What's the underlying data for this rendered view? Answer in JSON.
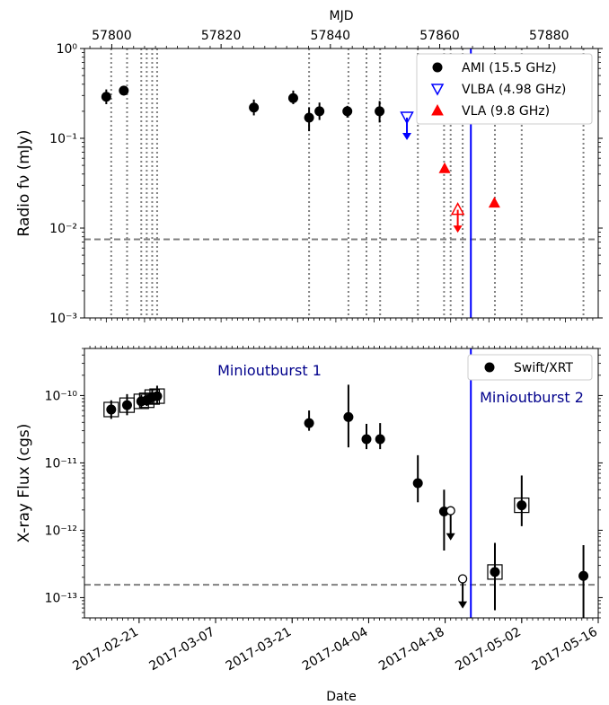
{
  "top_axis_label": "MJD",
  "bottom_axis_label": "Date",
  "chart_data": [
    {
      "type": "scatter",
      "panel": "radio",
      "ylabel": "Radio fν (mJy)",
      "yscale": "log",
      "ylim": [
        0.001,
        1
      ],
      "xlim_mjd": [
        57795,
        57889
      ],
      "y_ticks": [
        {
          "v": 0.001,
          "label": "10⁻³"
        },
        {
          "v": 0.01,
          "label": "10⁻²"
        },
        {
          "v": 0.1,
          "label": "10⁻¹"
        },
        {
          "v": 1,
          "label": "10⁰"
        }
      ],
      "top_ticks": [
        {
          "mjd": 57800,
          "label": "57800"
        },
        {
          "mjd": 57820,
          "label": "57820"
        },
        {
          "mjd": 57840,
          "label": "57840"
        },
        {
          "mjd": 57860,
          "label": "57860"
        },
        {
          "mjd": 57880,
          "label": "57880"
        }
      ],
      "series": [
        {
          "name": "AMI (15.5 GHz)",
          "color": "#000000",
          "marker": "circle",
          "points": [
            {
              "x": 57799.0,
              "y": 0.29,
              "ylo": 0.24,
              "yhi": 0.35
            },
            {
              "x": 57802.2,
              "y": 0.34,
              "ylo": 0.3,
              "yhi": 0.38
            },
            {
              "x": 57826.0,
              "y": 0.22,
              "ylo": 0.18,
              "yhi": 0.27
            },
            {
              "x": 57833.2,
              "y": 0.28,
              "ylo": 0.24,
              "yhi": 0.34
            },
            {
              "x": 57836.1,
              "y": 0.17,
              "ylo": 0.12,
              "yhi": 0.22
            },
            {
              "x": 57838.0,
              "y": 0.2,
              "ylo": 0.16,
              "yhi": 0.25
            },
            {
              "x": 57843.1,
              "y": 0.2,
              "ylo": 0.17,
              "yhi": 0.23
            },
            {
              "x": 57849.0,
              "y": 0.2,
              "ylo": 0.15,
              "yhi": 0.26
            }
          ]
        },
        {
          "name": "VLBA (4.98 GHz)",
          "color": "#0000ff",
          "marker": "triangle-down-open",
          "points": [
            {
              "x": 57854.0,
              "y": 0.17,
              "upper_limit": true,
              "arrow_to": 0.1
            }
          ]
        },
        {
          "name": "VLA (9.8 GHz)",
          "color": "#ff0000",
          "marker": "triangle-up",
          "points": [
            {
              "x": 57860.9,
              "y": 0.046
            },
            {
              "x": 57863.3,
              "y": 0.016,
              "open": true,
              "upper_limit": true,
              "arrow_to": 0.0093
            },
            {
              "x": 57870.0,
              "y": 0.019
            }
          ]
        }
      ],
      "hlines": [
        {
          "y": 0.0075,
          "style": "dashed",
          "color": "#808080"
        }
      ],
      "vlines_dotted_mjd": [
        57799.9,
        57802.8,
        57805.4,
        57806.4,
        57807.4,
        57808.3,
        57836.1,
        57843.3,
        57846.6,
        57849.1,
        57856.0,
        57860.8,
        57862.0,
        57864.2,
        57870.1,
        57875.0,
        57886.3
      ],
      "vline_solid_mjd": 57865.7,
      "legend_position": "upper right"
    },
    {
      "type": "scatter",
      "panel": "xray",
      "ylabel": "X-ray Flux (cgs)",
      "yscale": "log",
      "ylim": [
        5e-14,
        5e-10
      ],
      "y_ticks": [
        {
          "v": 1e-13,
          "label": "10⁻¹³"
        },
        {
          "v": 1e-12,
          "label": "10⁻¹²"
        },
        {
          "v": 1e-11,
          "label": "10⁻¹¹"
        },
        {
          "v": 1e-10,
          "label": "10⁻¹⁰"
        }
      ],
      "x_ticks": [
        {
          "date": "2017-02-21",
          "label": "2017-02-21"
        },
        {
          "date": "2017-03-07",
          "label": "2017-03-07"
        },
        {
          "date": "2017-03-21",
          "label": "2017-03-21"
        },
        {
          "date": "2017-04-04",
          "label": "2017-04-04"
        },
        {
          "date": "2017-04-18",
          "label": "2017-04-18"
        },
        {
          "date": "2017-05-02",
          "label": "2017-05-02"
        },
        {
          "date": "2017-05-16",
          "label": "2017-05-16"
        }
      ],
      "series": [
        {
          "name": "Swift/XRT",
          "color": "#000000",
          "marker": "circle",
          "points": [
            {
              "x": 57799.9,
              "y": 6.2e-11,
              "ylo": 4.5e-11,
              "yhi": 8.5e-11,
              "boxed": true
            },
            {
              "x": 57802.8,
              "y": 7.2e-11,
              "ylo": 5.1e-11,
              "yhi": 1.05e-10,
              "boxed": true
            },
            {
              "x": 57805.4,
              "y": 8.2e-11,
              "ylo": 6.5e-11,
              "yhi": 1.02e-10,
              "boxed": true
            },
            {
              "x": 57806.4,
              "y": 8.5e-11,
              "ylo": 7e-11,
              "yhi": 1.03e-10,
              "boxed": true
            },
            {
              "x": 57807.4,
              "y": 9.5e-11,
              "ylo": 7.5e-11,
              "yhi": 1.25e-10,
              "boxed": true
            },
            {
              "x": 57808.3,
              "y": 9.8e-11,
              "ylo": 7.5e-11,
              "yhi": 1.4e-10,
              "boxed": true
            },
            {
              "x": 57836.1,
              "y": 3.9e-11,
              "ylo": 3e-11,
              "yhi": 6e-11
            },
            {
              "x": 57843.3,
              "y": 4.8e-11,
              "ylo": 1.7e-11,
              "yhi": 1.45e-10
            },
            {
              "x": 57846.6,
              "y": 2.25e-11,
              "ylo": 1.6e-11,
              "yhi": 3.8e-11
            },
            {
              "x": 57849.1,
              "y": 2.25e-11,
              "ylo": 1.6e-11,
              "yhi": 3.9e-11
            },
            {
              "x": 57856.0,
              "y": 5e-12,
              "ylo": 2.6e-12,
              "yhi": 1.3e-11
            },
            {
              "x": 57860.8,
              "y": 1.9e-12,
              "ylo": 5e-13,
              "yhi": 4e-12
            },
            {
              "x": 57862.0,
              "y": 1.95e-12,
              "open": true,
              "upper_limit": true,
              "arrow_to": 7.5e-13
            },
            {
              "x": 57864.2,
              "y": 1.9e-13,
              "open": true,
              "upper_limit": true,
              "arrow_to": 7.3e-14
            },
            {
              "x": 57870.1,
              "y": 2.4e-13,
              "ylo": 6.5e-14,
              "yhi": 6.5e-13,
              "boxed": true
            },
            {
              "x": 57875.0,
              "y": 2.35e-12,
              "ylo": 1.15e-12,
              "yhi": 6.5e-12,
              "boxed": true
            },
            {
              "x": 57886.3,
              "y": 2.1e-13,
              "ylo": 5e-14,
              "yhi": 6e-13
            }
          ]
        }
      ],
      "hlines": [
        {
          "y": 1.55e-13,
          "style": "dashed",
          "color": "#808080"
        }
      ],
      "vline_solid_mjd": 57865.7,
      "annotations": [
        {
          "text": "Minioutburst 1",
          "color": "#00008b"
        },
        {
          "text": "Minioutburst 2",
          "color": "#00008b"
        }
      ],
      "legend_position": "upper right"
    }
  ]
}
